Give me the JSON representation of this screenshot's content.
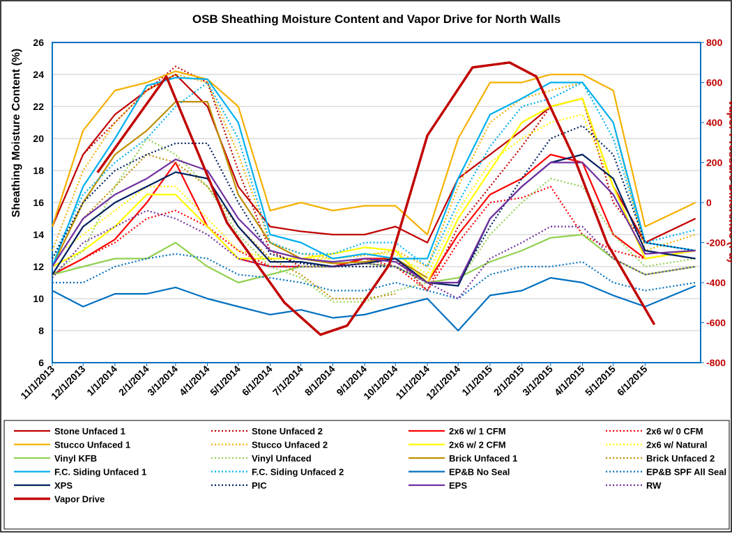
{
  "chart_data": {
    "type": "line",
    "title": "OSB Sheathing Moisture Content and Vapor Drive for North Walls",
    "y_label": "Sheathing Moisture Content (%)",
    "y2_label": "Vapor Pressure Difference (Pa)",
    "ylim": [
      6,
      26
    ],
    "yticks": [
      6,
      8,
      10,
      12,
      14,
      16,
      18,
      20,
      22,
      24,
      26
    ],
    "y2lim": [
      -800,
      800
    ],
    "y2ticks": [
      -800,
      -600,
      -400,
      -200,
      0,
      200,
      400,
      600,
      800
    ],
    "xlim": [
      "11/1/2013",
      "7/25/2015"
    ],
    "xticks": [
      "11/1/2013",
      "12/1/2013",
      "1/1/2014",
      "2/1/2014",
      "3/1/2014",
      "4/1/2014",
      "5/1/2014",
      "6/1/2014",
      "7/1/2014",
      "8/1/2014",
      "9/1/2014",
      "10/1/2014",
      "11/1/2014",
      "12/1/2014",
      "1/1/2015",
      "2/1/2015",
      "3/1/2015",
      "4/1/2015",
      "5/1/2015",
      "6/1/2015"
    ],
    "grid": true,
    "x": [
      "11/1/2013",
      "12/1/2013",
      "1/1/2014",
      "2/1/2014",
      "3/1/2014",
      "4/1/2014",
      "5/1/2014",
      "6/1/2014",
      "7/1/2014",
      "8/1/2014",
      "9/1/2014",
      "10/1/2014",
      "11/1/2014",
      "12/1/2014",
      "1/1/2015",
      "2/1/2015",
      "3/1/2015",
      "4/1/2015",
      "5/1/2015",
      "6/1/2015",
      "7/20/2015"
    ],
    "series": [
      {
        "name": "Stone Unfaced 1",
        "color": "#c00000",
        "style": "solid",
        "values": [
          14.5,
          19,
          21.5,
          23,
          24,
          22,
          17,
          14.5,
          14.2,
          14,
          14,
          14.5,
          13.5,
          17.5,
          19,
          20.5,
          22,
          22.5,
          17,
          13.5,
          15
        ]
      },
      {
        "name": "Stone Unfaced 2",
        "color": "#c00000",
        "style": "dotted",
        "values": [
          14.5,
          19,
          21,
          23,
          24.5,
          23.5,
          18,
          13,
          12,
          12,
          12.5,
          12.5,
          10.5,
          14.5,
          17,
          19.5,
          22,
          22.5,
          16,
          13.5,
          15
        ]
      },
      {
        "name": "2x6 w/ 1 CFM",
        "color": "#ff0000",
        "style": "solid",
        "values": [
          11.5,
          12.5,
          13.7,
          16,
          18.5,
          14.5,
          12.5,
          12,
          12,
          12,
          12.5,
          12.5,
          11,
          14,
          16.5,
          17.5,
          19,
          18.5,
          14,
          12.5,
          13
        ]
      },
      {
        "name": "2x6 w/ 0 CFM",
        "color": "#ff0000",
        "style": "dotted",
        "values": [
          11.5,
          12.5,
          13.5,
          15,
          15.5,
          14.5,
          13,
          12,
          12,
          12,
          12.5,
          12,
          10.5,
          13.5,
          16,
          16.3,
          17,
          14,
          13,
          12.5,
          13
        ]
      },
      {
        "name": "Stucco Unfaced 1",
        "color": "#f5b000",
        "style": "solid",
        "values": [
          14.5,
          20.5,
          23,
          23.5,
          24.2,
          23.7,
          22,
          15.5,
          16,
          15.5,
          15.8,
          15.8,
          14,
          20,
          23.5,
          23.5,
          24,
          24,
          23,
          14.5,
          16
        ]
      },
      {
        "name": "Stucco Unfaced 2",
        "color": "#f5b000",
        "style": "dotted",
        "values": [
          13,
          18,
          21,
          23,
          24,
          23.5,
          19,
          13.5,
          12.8,
          12.5,
          12.7,
          13,
          12,
          17,
          21,
          22.5,
          23,
          23.5,
          21,
          13,
          14
        ]
      },
      {
        "name": "2x6 w/ 2 CFM",
        "color": "#ffff00",
        "style": "solid",
        "values": [
          12,
          13,
          14.5,
          16.5,
          16.5,
          14.5,
          12.5,
          12.5,
          12.5,
          12.8,
          13.2,
          13,
          11,
          15,
          18,
          21,
          22,
          22.5,
          17,
          12.5,
          13
        ]
      },
      {
        "name": "2x6 w/ Natural",
        "color": "#ffff00",
        "style": "dotted",
        "values": [
          12.5,
          14,
          15.5,
          17,
          17,
          15,
          13,
          12.5,
          12.5,
          12.5,
          12.8,
          12.8,
          11.5,
          15.5,
          18.5,
          20,
          21,
          21.5,
          17,
          12.5,
          13
        ]
      },
      {
        "name": "Vinyl KFB",
        "color": "#92d050",
        "style": "solid",
        "values": [
          11.5,
          12,
          12.5,
          12.5,
          13.5,
          12,
          11,
          11.5,
          12,
          12,
          12.2,
          12,
          11,
          11.3,
          12.3,
          13,
          13.8,
          14,
          12.5,
          11.5,
          12
        ]
      },
      {
        "name": "Vinyl Unfaced",
        "color": "#92d050",
        "style": "dotted",
        "values": [
          11.5,
          13,
          17,
          20,
          19,
          17,
          14,
          12,
          11.3,
          9.8,
          9.8,
          10.5,
          11,
          11,
          14,
          16,
          17.5,
          17,
          14,
          12,
          12.5
        ]
      },
      {
        "name": "Brick Unfaced 1",
        "color": "#bf8f00",
        "style": "solid",
        "values": [
          12,
          16,
          19,
          20.5,
          22.3,
          22.3,
          16.5,
          13.5,
          12.5,
          12.2,
          12.3,
          12.5,
          11.3,
          null,
          null,
          null,
          null,
          null,
          null,
          null,
          null
        ]
      },
      {
        "name": "Brick Unfaced 2",
        "color": "#bf8f00",
        "style": "dotted",
        "values": [
          12,
          15,
          17,
          19,
          18.5,
          17,
          14.5,
          12.5,
          11.5,
          10,
          10,
          10.3,
          null,
          null,
          null,
          null,
          null,
          null,
          null,
          null,
          null
        ]
      },
      {
        "name": "F.C. Siding Unfaced 1",
        "color": "#00b0f0",
        "style": "solid",
        "values": [
          12,
          17,
          20,
          23.3,
          23.8,
          23.7,
          21,
          14,
          13.5,
          12.5,
          12.8,
          12.5,
          12.5,
          17.5,
          21.5,
          22.5,
          23.5,
          23.5,
          21,
          13.5,
          13
        ]
      },
      {
        "name": "F.C. Siding Unfaced 2",
        "color": "#00b0f0",
        "style": "dotted",
        "values": [
          12.5,
          16.5,
          18.5,
          20,
          22,
          23.5,
          20,
          13.5,
          12.8,
          12.8,
          13.5,
          13.5,
          12,
          16,
          19.5,
          22,
          22.5,
          23.5,
          20,
          13.5,
          14.3
        ]
      },
      {
        "name": "EP&B No Seal",
        "color": "#0070c0",
        "style": "solid",
        "values": [
          10.5,
          9.5,
          10.3,
          10.3,
          10.7,
          10,
          9.5,
          9,
          9.3,
          8.8,
          9,
          9.5,
          10,
          8,
          10.2,
          10.5,
          11.3,
          11,
          10.2,
          9.5,
          10.8
        ]
      },
      {
        "name": "EP&B SPF All Seal",
        "color": "#0070c0",
        "style": "dotted",
        "values": [
          11,
          11,
          12,
          12.5,
          12.8,
          12.5,
          11.5,
          11.3,
          11,
          10.5,
          10.5,
          11,
          10.5,
          10,
          11.5,
          12,
          12,
          12.3,
          11,
          10.5,
          11
        ]
      },
      {
        "name": "XPS",
        "color": "#002060",
        "style": "solid",
        "values": [
          11.5,
          14.5,
          16,
          17,
          17.9,
          17.5,
          14.5,
          12.3,
          12.3,
          12,
          12.2,
          12.5,
          11,
          10.8,
          15,
          17,
          18.5,
          19,
          17.5,
          13,
          12.5
        ]
      },
      {
        "name": "PIC",
        "color": "#002060",
        "style": "dotted",
        "values": [
          12.5,
          16,
          18,
          19,
          19.7,
          19.7,
          16,
          12.8,
          12.2,
          12,
          12,
          12,
          11,
          11,
          14.5,
          17.5,
          20,
          20.8,
          19,
          13.5,
          13
        ]
      },
      {
        "name": "EPS",
        "color": "#7030a0",
        "style": "solid",
        "values": [
          12,
          15,
          16.5,
          17.5,
          18.7,
          18,
          15,
          13,
          12.5,
          12.3,
          12.5,
          12.3,
          11,
          11,
          15,
          17,
          18.5,
          18.5,
          16.5,
          12.8,
          13
        ]
      },
      {
        "name": "RW",
        "color": "#7030a0",
        "style": "dotted",
        "values": [
          11.3,
          13.5,
          14.5,
          15.5,
          15,
          14,
          12.5,
          12,
          12,
          12,
          12.2,
          12,
          11,
          10,
          12.5,
          13.5,
          14.5,
          14.5,
          12.5,
          11.5,
          12
        ]
      },
      {
        "name": "Vapor Drive",
        "color": "#c00000",
        "style": "thick",
        "axis": "y2",
        "x": [
          "12/15/2013",
          "2/20/2014",
          "4/20/2014",
          "6/15/2014",
          "7/20/2014",
          "8/15/2014",
          "9/25/2014",
          "11/1/2014",
          "12/15/2014",
          "1/20/2015",
          "2/15/2015",
          "3/25/2015",
          "4/25/2015",
          "6/10/2015"
        ],
        "values": [
          150,
          630,
          -100,
          -500,
          -660,
          -615,
          -310,
          335,
          675,
          700,
          630,
          210,
          -205,
          -610
        ]
      }
    ]
  }
}
